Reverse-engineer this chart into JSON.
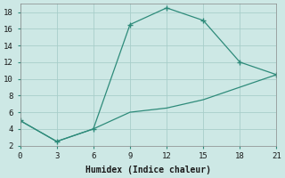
{
  "line1_x": [
    0,
    3,
    6,
    9,
    12,
    15,
    18,
    21
  ],
  "line1_y": [
    5,
    2.5,
    4,
    16.5,
    18.5,
    17,
    12,
    10.5
  ],
  "line2_x": [
    0,
    3,
    6,
    9,
    12,
    15,
    18,
    21
  ],
  "line2_y": [
    5,
    2.5,
    4,
    6,
    6.5,
    7.5,
    9,
    10.5
  ],
  "line_color": "#2e8b7a",
  "bg_color": "#cde8e5",
  "grid_color": "#a8ceca",
  "xlabel": "Humidex (Indice chaleur)",
  "xlim": [
    0,
    21
  ],
  "ylim": [
    2,
    19
  ],
  "xticks": [
    0,
    3,
    6,
    9,
    12,
    15,
    18,
    21
  ],
  "yticks": [
    2,
    4,
    6,
    8,
    10,
    12,
    14,
    16,
    18
  ],
  "axis_fontsize": 7,
  "tick_fontsize": 6.5
}
